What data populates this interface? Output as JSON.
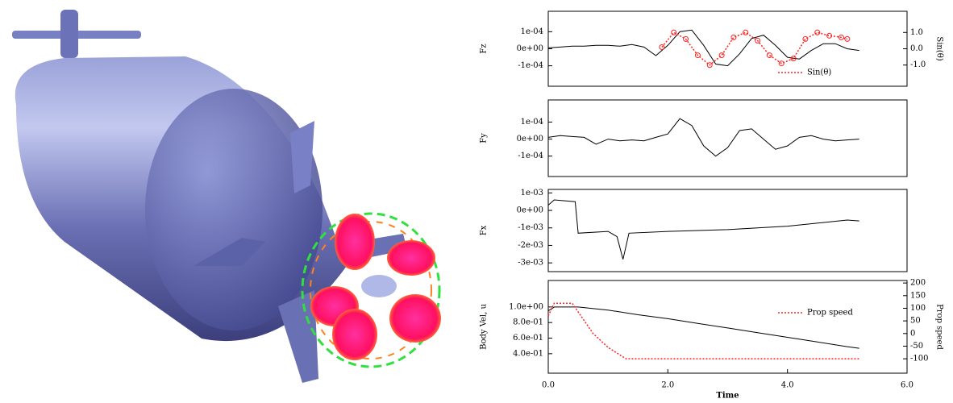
{
  "chart_data": [
    {
      "type": "line",
      "ylabel": "Fz",
      "y2label": "Sin(θ)",
      "legend": "lower right",
      "xlim": [
        0,
        6
      ],
      "ylim": [
        -0.00022,
        0.00022
      ],
      "yticks": [
        {
          "value": 0.0001,
          "label": "1e-04"
        },
        {
          "value": 0,
          "label": "0e+00"
        },
        {
          "value": -0.0001,
          "label": "-1e-04"
        }
      ],
      "y2lim": [
        -2.3,
        2.3
      ],
      "y2ticks": [
        {
          "value": 1,
          "label": "1.0"
        },
        {
          "value": 0,
          "label": "0.0"
        },
        {
          "value": -1,
          "label": "-1.0"
        }
      ],
      "series": [
        {
          "color": "#000000",
          "x": [
            0,
            0.2,
            0.4,
            0.6,
            0.8,
            1.0,
            1.2,
            1.4,
            1.6,
            1.8,
            2.0,
            2.2,
            2.4,
            2.6,
            2.8,
            3.0,
            3.2,
            3.4,
            3.6,
            3.8,
            4.0,
            4.2,
            4.4,
            4.6,
            4.8,
            5.0,
            5.2
          ],
          "values": [
            5e-06,
            1e-05,
            1.5e-05,
            1.5e-05,
            2e-05,
            2e-05,
            1.5e-05,
            2.5e-05,
            1e-05,
            -4e-05,
            2e-05,
            0.0001,
            0.00011,
            2e-05,
            -9e-05,
            -0.0001,
            -3e-05,
            6e-05,
            8e-05,
            2e-05,
            -5e-05,
            -6e-05,
            -1e-05,
            3e-05,
            3e-05,
            0,
            -1e-05
          ]
        },
        {
          "name": "Sin(θ)",
          "color": "#ff2020",
          "axis": "y2",
          "dash": "dotted",
          "marker": "circle",
          "x": [
            1.9,
            2.1,
            2.3,
            2.5,
            2.7,
            2.9,
            3.1,
            3.3,
            3.5,
            3.7,
            3.9,
            4.1,
            4.3,
            4.5,
            4.7,
            4.9,
            5.0
          ],
          "values": [
            0.1,
            1.0,
            0.6,
            -0.4,
            -1.0,
            -0.4,
            0.7,
            1.0,
            0.5,
            -0.4,
            -0.9,
            -0.6,
            0.6,
            1.0,
            0.8,
            0.7,
            0.6
          ]
        }
      ]
    },
    {
      "type": "line",
      "ylabel": "Fy",
      "xlim": [
        0,
        6
      ],
      "ylim": [
        -0.00022,
        0.00023
      ],
      "yticks": [
        {
          "value": 0.0001,
          "label": "1e-04"
        },
        {
          "value": 0,
          "label": "0e+00"
        },
        {
          "value": -0.0001,
          "label": "-1e-04"
        }
      ],
      "series": [
        {
          "color": "#000000",
          "x": [
            0,
            0.2,
            0.4,
            0.6,
            0.8,
            1.0,
            1.2,
            1.4,
            1.6,
            1.8,
            2.0,
            2.2,
            2.4,
            2.6,
            2.8,
            3.0,
            3.2,
            3.4,
            3.6,
            3.8,
            4.0,
            4.2,
            4.4,
            4.6,
            4.8,
            5.0,
            5.2
          ],
          "values": [
            1e-05,
            2e-05,
            1.5e-05,
            1e-05,
            -3e-05,
            0,
            -1e-05,
            -5e-06,
            -1e-05,
            1e-05,
            3e-05,
            0.00012,
            8e-05,
            -4e-05,
            -0.0001,
            -5e-05,
            5e-05,
            6e-05,
            0,
            -6e-05,
            -4e-05,
            1e-05,
            2e-05,
            0,
            -1e-05,
            -5e-06,
            0
          ]
        }
      ]
    },
    {
      "type": "line",
      "ylabel": "Fx",
      "xlim": [
        0,
        6
      ],
      "ylim": [
        -0.0035,
        0.0012
      ],
      "yticks": [
        {
          "value": 0.001,
          "label": "1e-03"
        },
        {
          "value": 0,
          "label": "0e+00"
        },
        {
          "value": -0.001,
          "label": "-1e-03"
        },
        {
          "value": -0.002,
          "label": "-2e-03"
        },
        {
          "value": -0.003,
          "label": "-3e-03"
        }
      ],
      "series": [
        {
          "color": "#000000",
          "x": [
            0,
            0.1,
            0.45,
            0.5,
            1.0,
            1.15,
            1.25,
            1.35,
            2.0,
            3.0,
            4.0,
            5.0,
            5.2
          ],
          "values": [
            0.0003,
            0.0006,
            0.0005,
            -0.0013,
            -0.0012,
            -0.0015,
            -0.0028,
            -0.0013,
            -0.0012,
            -0.0011,
            -0.0009,
            -0.00055,
            -0.0006
          ]
        }
      ]
    },
    {
      "type": "line",
      "ylabel": "Body Vel, u",
      "y2label": "Prop speed",
      "xlabel": "Time",
      "legend": "upper right",
      "xlim": [
        0,
        6
      ],
      "xticks": [
        {
          "value": 0,
          "label": "0.0"
        },
        {
          "value": 2,
          "label": "2.0"
        },
        {
          "value": 4,
          "label": "4.0"
        },
        {
          "value": 6,
          "label": "6.0"
        }
      ],
      "ylim": [
        0.15,
        1.34
      ],
      "yticks": [
        {
          "value": 1,
          "label": "1.0e+00"
        },
        {
          "value": 0.8,
          "label": "8.0e-01"
        },
        {
          "value": 0.6,
          "label": "6.0e-01"
        },
        {
          "value": 0.4,
          "label": "4.0e-01"
        }
      ],
      "y2lim": [
        -157,
        210
      ],
      "y2ticks": [
        200,
        150,
        100,
        50,
        0,
        -50,
        -100
      ],
      "series": [
        {
          "color": "#000000",
          "x": [
            0,
            0.1,
            0.5,
            1,
            1.5,
            2,
            2.5,
            3,
            3.5,
            4,
            4.5,
            5,
            5.2
          ],
          "values": [
            0.95,
            1.0,
            1.0,
            0.96,
            0.9,
            0.85,
            0.79,
            0.73,
            0.67,
            0.61,
            0.55,
            0.49,
            0.47
          ]
        },
        {
          "name": "Prop speed",
          "color": "#ff2020",
          "axis": "y2",
          "dash": "dotted",
          "x": [
            0,
            0.1,
            0.4,
            0.75,
            1.0,
            1.3,
            5.2
          ],
          "values": [
            70,
            120,
            120,
            0,
            -55,
            -100,
            -100
          ]
        }
      ]
    }
  ]
}
